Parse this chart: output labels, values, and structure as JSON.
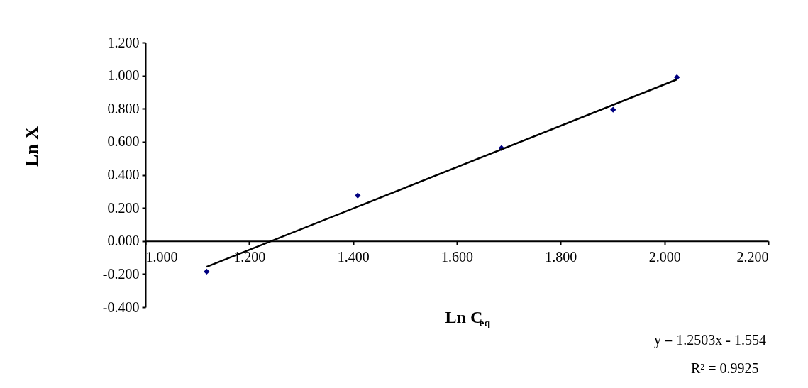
{
  "chart_data": {
    "type": "scatter",
    "xlabel": "Ln C$_{eq}$",
    "ylabel": "Ln X",
    "xlim": [
      1.0,
      2.2
    ],
    "xticks": [
      {
        "value": 1.0,
        "label": "1.000"
      },
      {
        "value": 1.2,
        "label": "1.200"
      },
      {
        "value": 1.4,
        "label": "1.400"
      },
      {
        "value": 1.6,
        "label": "1.600"
      },
      {
        "value": 1.8,
        "label": "1.800"
      },
      {
        "value": 2.0,
        "label": "2.000"
      },
      {
        "value": 2.2,
        "label": "2.200"
      }
    ],
    "ylim": [
      -0.4,
      1.2
    ],
    "yticks": [
      {
        "value": -0.4,
        "label": "-0.400"
      },
      {
        "value": -0.2,
        "label": "-0.200"
      },
      {
        "value": 0,
        "label": "0.000"
      },
      {
        "value": 0.2,
        "label": "0.200"
      },
      {
        "value": 0.4,
        "label": "0.400"
      },
      {
        "value": 0.6,
        "label": "0.600"
      },
      {
        "value": 0.8,
        "label": "0.800"
      },
      {
        "value": 1.0,
        "label": "1.000"
      },
      {
        "value": 1.2,
        "label": "1.200"
      }
    ],
    "grid": false,
    "marker": "diamond",
    "annotations": [
      "y = 1.2503x - 1.554",
      "R² = 0.9925"
    ],
    "series": [
      {
        "type": "scatter",
        "color": "#000080",
        "x": [
          1.118,
          1.409,
          1.686,
          1.901,
          2.024
        ],
        "values": [
          -0.185,
          0.275,
          0.562,
          0.794,
          0.99
        ]
      },
      {
        "type": "line",
        "color": "#000000",
        "marker": "none",
        "line_style": "solid",
        "x": [
          1.118,
          2.024
        ],
        "values": [
          -0.156,
          0.977
        ]
      }
    ]
  }
}
